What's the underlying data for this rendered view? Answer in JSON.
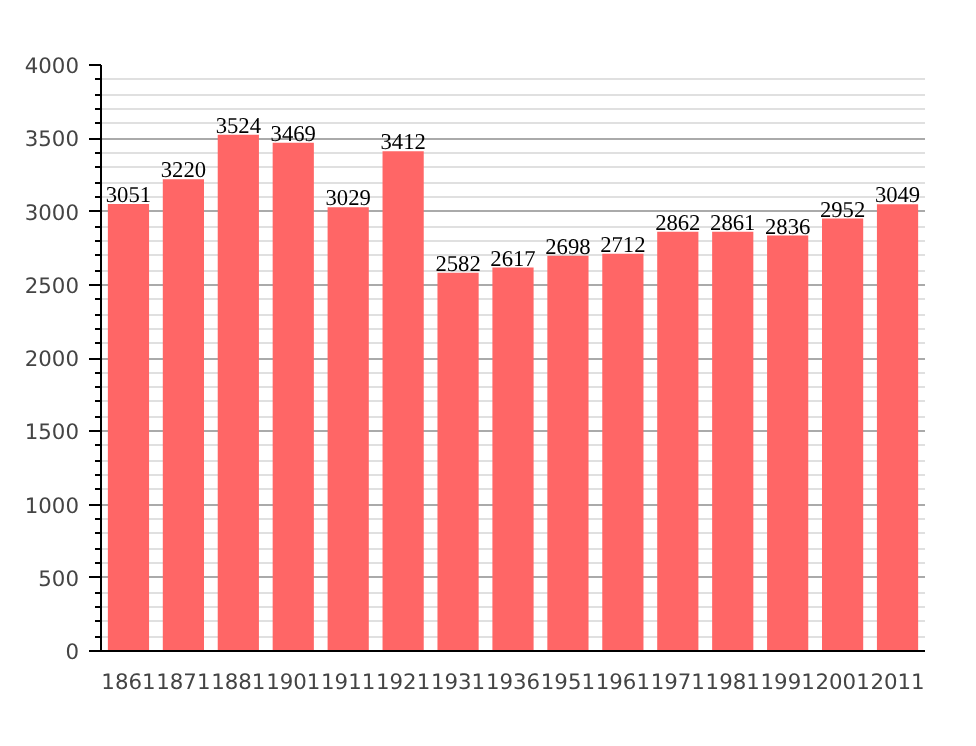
{
  "chart_data": {
    "type": "bar",
    "categories": [
      "1861",
      "1871",
      "1881",
      "1901",
      "1911",
      "1921",
      "1931",
      "1936",
      "1951",
      "1961",
      "1971",
      "1981",
      "1991",
      "2001",
      "2011"
    ],
    "values": [
      3051,
      3220,
      3524,
      3469,
      3029,
      3412,
      2582,
      2617,
      2698,
      2712,
      2862,
      2861,
      2836,
      2952,
      3049
    ],
    "color": "#ff6666",
    "ylim": [
      0,
      4000
    ],
    "yticks": [
      0,
      500,
      1000,
      1500,
      2000,
      2500,
      3000,
      3500,
      4000
    ],
    "grid": "y",
    "data_labels": true
  }
}
